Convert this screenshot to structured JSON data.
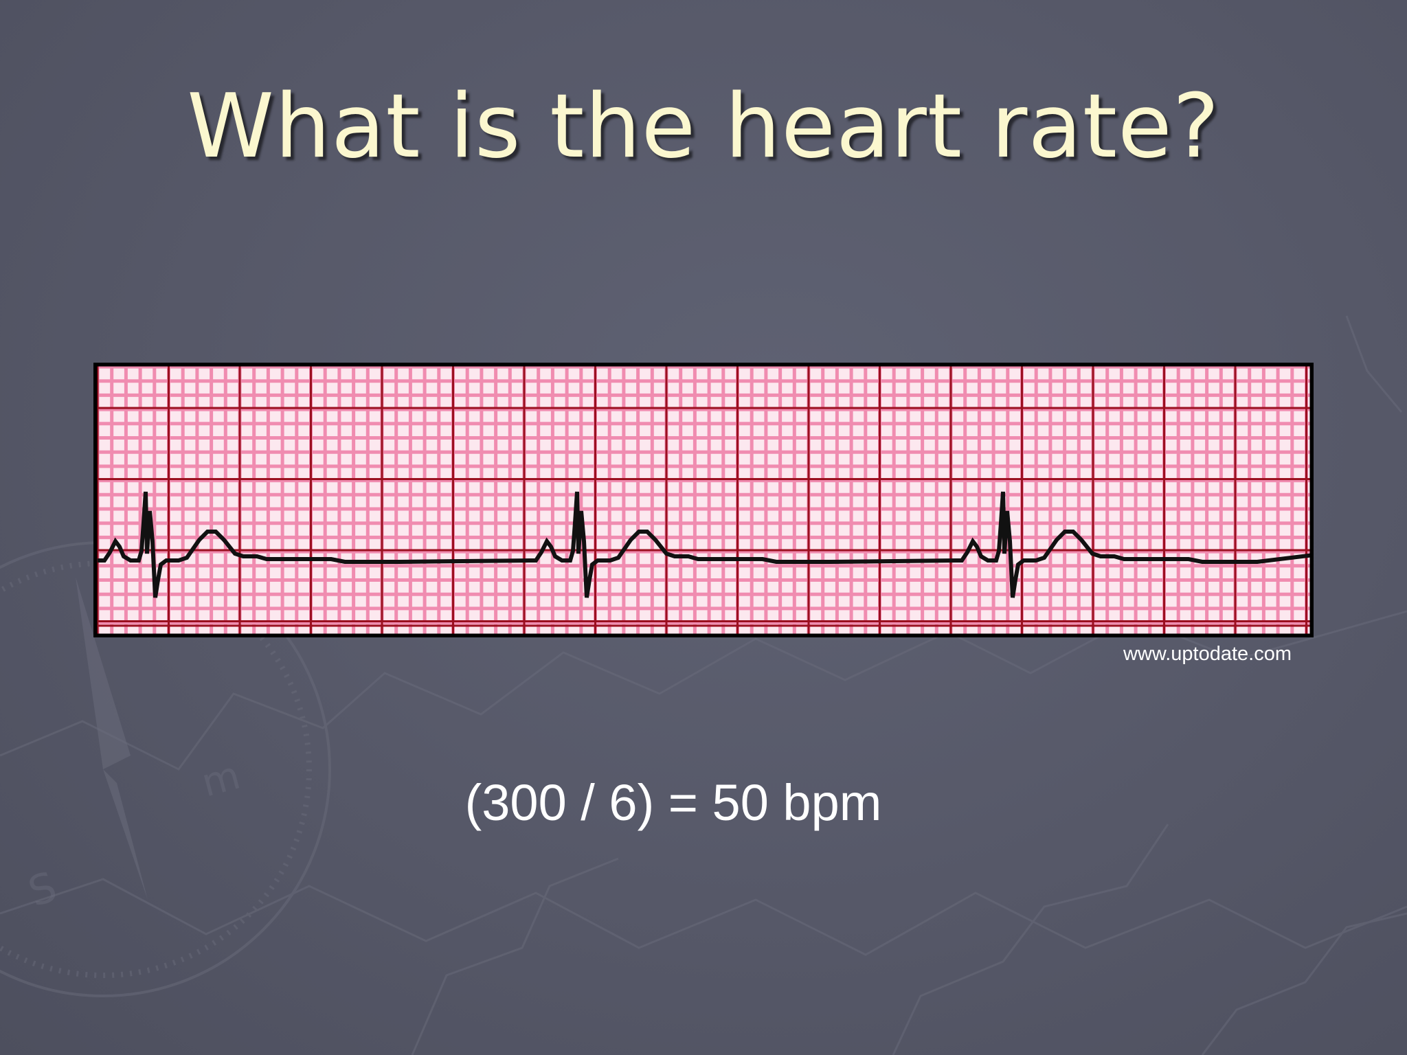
{
  "slide": {
    "title": "What is the heart rate?",
    "source_credit": "www.uptodate.com",
    "answer": "(300 / 6) = 50 bpm"
  },
  "ecg": {
    "paper_color": "#fce8ef",
    "minor_grid_color": "#f08cb0",
    "major_grid_color": "#9b1020",
    "trace_color": "#111111",
    "beats_visible": 3,
    "large_boxes_between_r_waves": 6
  },
  "background": {
    "color": "#585a6a",
    "decoration": "compass-map-watermark"
  }
}
